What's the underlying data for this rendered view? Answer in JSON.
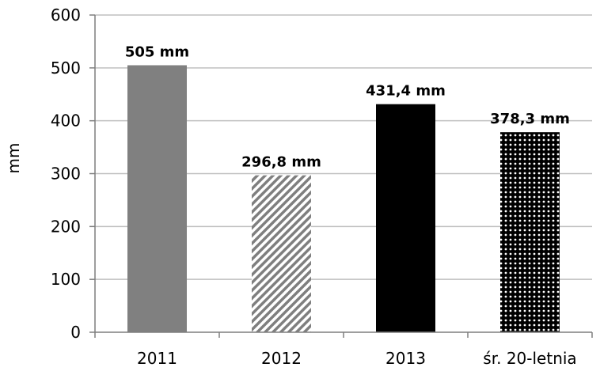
{
  "chart_data": {
    "type": "bar",
    "title": "",
    "xlabel": "",
    "ylabel": "mm",
    "ylim": [
      0,
      600
    ],
    "yticks": [
      0,
      100,
      200,
      300,
      400,
      500,
      600
    ],
    "grid": true,
    "categories": [
      "2011",
      "2012",
      "2013",
      "śr. 20-letnia"
    ],
    "values": [
      505,
      296.8,
      431.4,
      378.3
    ],
    "data_labels": [
      "505 mm",
      "296,8 mm",
      "431,4 mm",
      "378,3 mm"
    ],
    "bar_styles": [
      "solid-gray",
      "diagonal-hatch",
      "solid-black",
      "crosshatch-dots"
    ],
    "colors": {
      "bar_gray": "#808080",
      "bar_black": "#000000",
      "gridline": "#bfbfbf",
      "axis": "#7f7f7f"
    }
  }
}
